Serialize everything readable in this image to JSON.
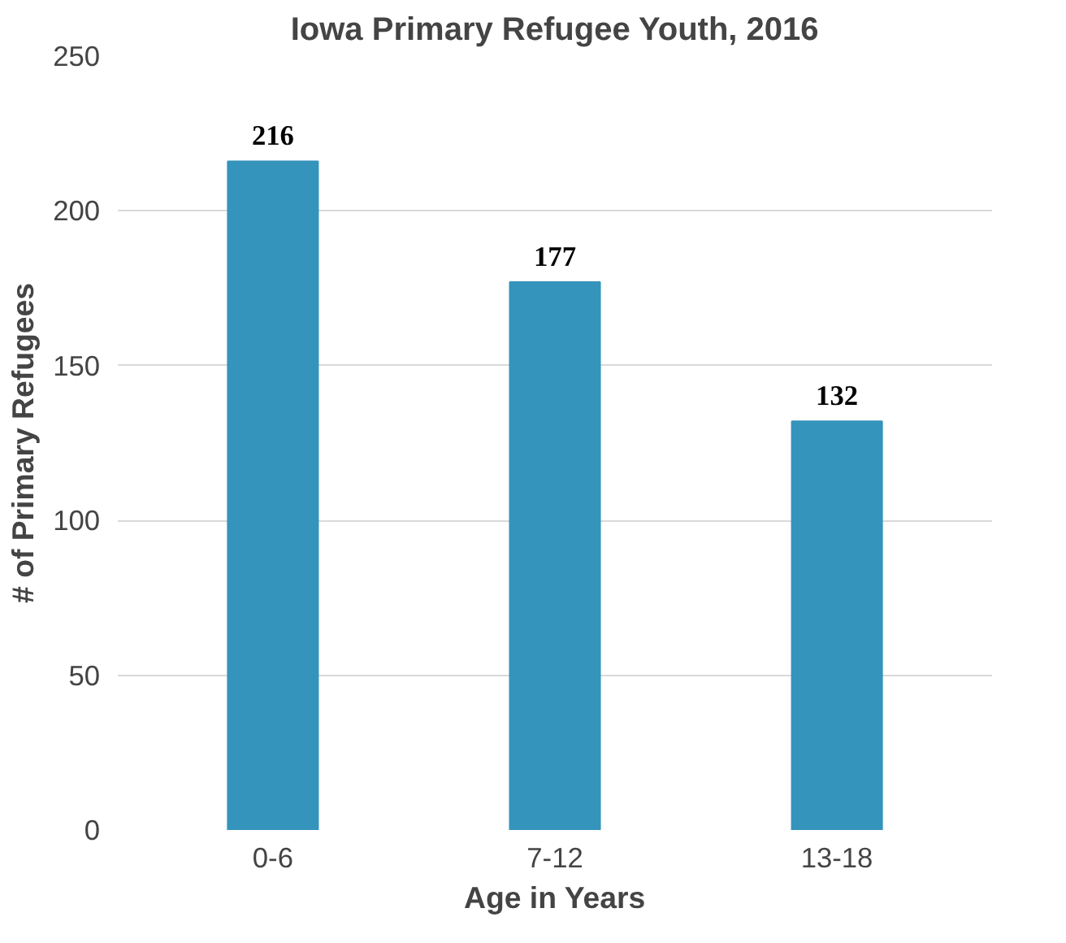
{
  "chart_data": {
    "type": "bar",
    "title": "Iowa Primary Refugee Youth, 2016",
    "xlabel": "Age in Years",
    "ylabel": "# of Primary Refugees",
    "categories": [
      "0-6",
      "7-12",
      "13-18"
    ],
    "values": [
      216,
      177,
      132
    ],
    "color": "#3594bb",
    "ylim": [
      0,
      250
    ],
    "yticks": [
      0,
      50,
      100,
      150,
      200,
      250
    ],
    "grid": "y",
    "data_labels": true
  }
}
